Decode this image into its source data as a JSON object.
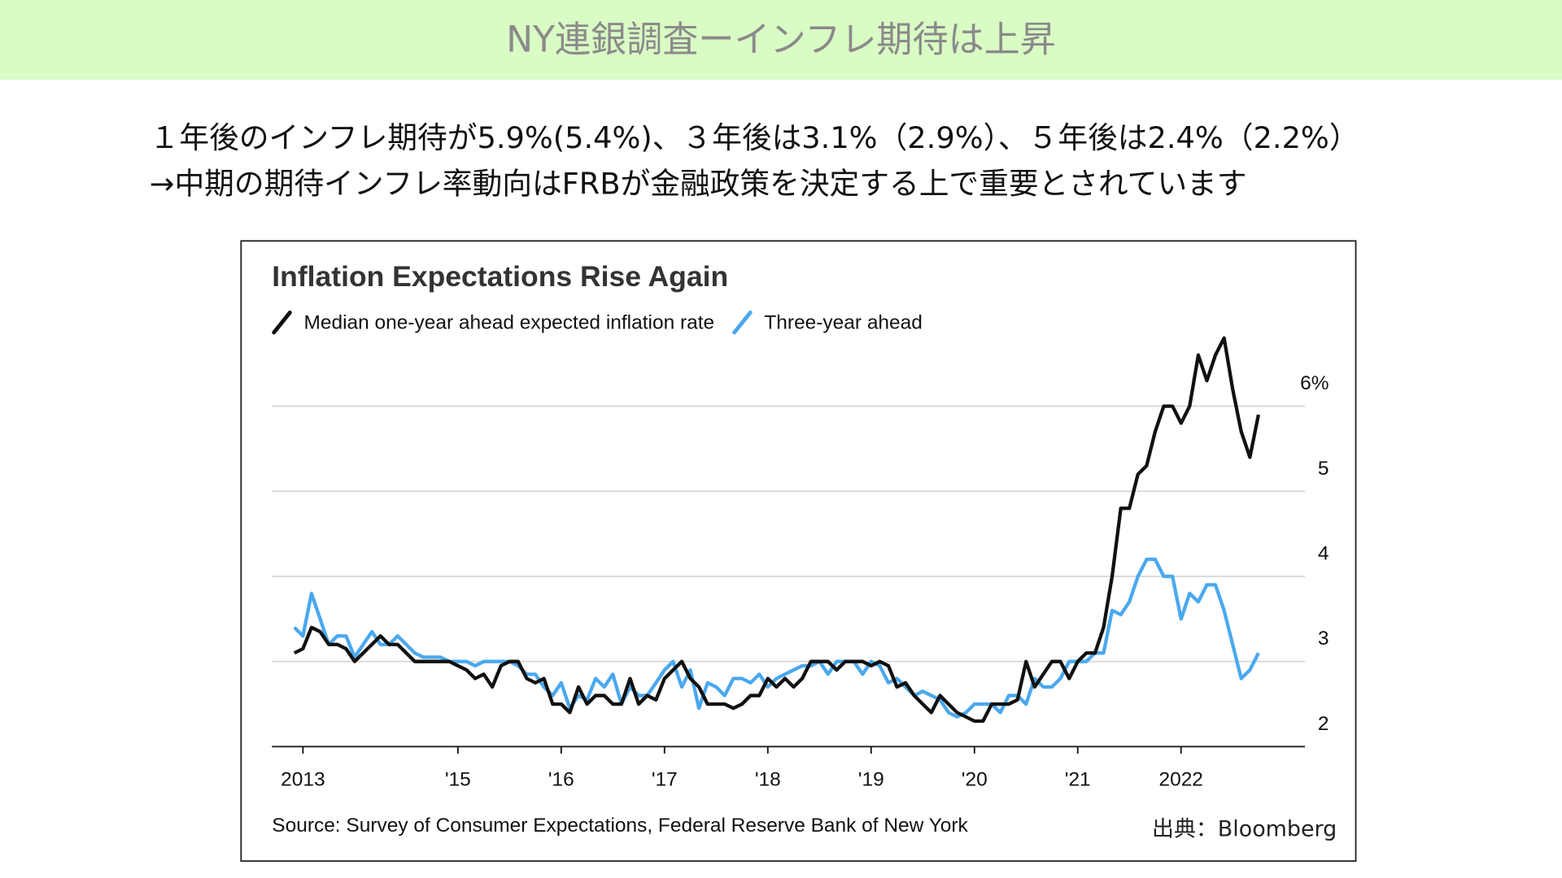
{
  "header": {
    "title": "NY連銀調査ーインフレ期待は上昇"
  },
  "notes": [
    "１年後のインフレ期待が5.9%(5.4%)、３年後は3.1%（2.9%）、５年後は2.4%（2.2%）",
    "→中期の期待インフレ率動向はFRBが金融政策を決定する上で重要とされています"
  ],
  "credit": "出典：Bloomberg",
  "chart_data": {
    "type": "line",
    "title": "Inflation Expectations Rise Again",
    "source": "Source: Survey of Consumer Expectations, Federal Reserve Bank of New York",
    "x": [
      2013.417,
      2013.5,
      2013.583,
      2013.667,
      2013.75,
      2013.833,
      2013.917,
      2014,
      2014.083,
      2014.167,
      2014.25,
      2014.333,
      2014.417,
      2014.5,
      2014.583,
      2014.667,
      2014.75,
      2014.833,
      2014.917,
      2015,
      2015.083,
      2015.167,
      2015.25,
      2015.333,
      2015.417,
      2015.5,
      2015.583,
      2015.667,
      2015.75,
      2015.833,
      2015.917,
      2016,
      2016.083,
      2016.167,
      2016.25,
      2016.333,
      2016.417,
      2016.5,
      2016.583,
      2016.667,
      2016.75,
      2016.833,
      2016.917,
      2017,
      2017.083,
      2017.167,
      2017.25,
      2017.333,
      2017.417,
      2017.5,
      2017.583,
      2017.667,
      2017.75,
      2017.833,
      2017.917,
      2018,
      2018.083,
      2018.167,
      2018.25,
      2018.333,
      2018.417,
      2018.5,
      2018.583,
      2018.667,
      2018.75,
      2018.833,
      2018.917,
      2019,
      2019.083,
      2019.167,
      2019.25,
      2019.333,
      2019.417,
      2019.5,
      2019.583,
      2019.667,
      2019.75,
      2019.833,
      2019.917,
      2020,
      2020.083,
      2020.167,
      2020.25,
      2020.333,
      2020.417,
      2020.5,
      2020.583,
      2020.667,
      2020.75,
      2020.833,
      2020.917,
      2021,
      2021.083,
      2021.167,
      2021.25,
      2021.333,
      2021.417,
      2021.5,
      2021.583,
      2021.667,
      2021.75,
      2021.833,
      2021.917,
      2022,
      2022.083,
      2022.167,
      2022.25,
      2022.333,
      2022.417,
      2022.5,
      2022.583,
      2022.667,
      2022.75
    ],
    "series": [
      {
        "name": "Median one-year ahead expected inflation rate",
        "color": "#111111",
        "values": [
          3.1,
          3.15,
          3.4,
          3.35,
          3.2,
          3.2,
          3.15,
          3.0,
          3.1,
          3.2,
          3.3,
          3.2,
          3.2,
          3.1,
          3.0,
          3.0,
          3.0,
          3.0,
          3.0,
          2.95,
          2.9,
          2.8,
          2.85,
          2.7,
          2.95,
          3.0,
          3.0,
          2.8,
          2.75,
          2.8,
          2.5,
          2.5,
          2.4,
          2.7,
          2.5,
          2.6,
          2.6,
          2.5,
          2.5,
          2.8,
          2.5,
          2.6,
          2.55,
          2.8,
          2.9,
          3.0,
          2.8,
          2.7,
          2.5,
          2.5,
          2.5,
          2.45,
          2.5,
          2.6,
          2.6,
          2.8,
          2.7,
          2.8,
          2.7,
          2.8,
          3.0,
          3.0,
          3.0,
          2.9,
          3.0,
          3.0,
          3.0,
          2.95,
          3.0,
          2.95,
          2.7,
          2.75,
          2.6,
          2.5,
          2.4,
          2.6,
          2.5,
          2.4,
          2.35,
          2.3,
          2.3,
          2.5,
          2.5,
          2.5,
          2.55,
          3.0,
          2.7,
          2.85,
          3.0,
          3.0,
          2.8,
          3.0,
          3.1,
          3.1,
          3.4,
          4.0,
          4.8,
          4.8,
          5.2,
          5.3,
          5.7,
          6.0,
          6.0,
          5.8,
          6.0,
          6.6,
          6.3,
          6.6,
          6.8,
          6.2,
          5.7,
          5.4,
          5.9
        ]
      },
      {
        "name": "Three-year ahead",
        "color": "#4aa8ee",
        "values": [
          3.4,
          3.3,
          3.8,
          3.5,
          3.2,
          3.3,
          3.3,
          3.05,
          3.2,
          3.35,
          3.2,
          3.2,
          3.3,
          3.2,
          3.1,
          3.05,
          3.05,
          3.05,
          3.0,
          3.0,
          3.0,
          2.95,
          3.0,
          3.0,
          3.0,
          3.0,
          2.95,
          2.85,
          2.85,
          2.7,
          2.6,
          2.75,
          2.45,
          2.6,
          2.55,
          2.8,
          2.7,
          2.85,
          2.5,
          2.7,
          2.6,
          2.6,
          2.75,
          2.9,
          3.0,
          2.7,
          2.9,
          2.45,
          2.75,
          2.7,
          2.6,
          2.8,
          2.8,
          2.75,
          2.85,
          2.7,
          2.8,
          2.85,
          2.9,
          2.95,
          2.95,
          3.0,
          2.85,
          3.0,
          3.0,
          3.0,
          2.85,
          3.0,
          2.95,
          2.75,
          2.8,
          2.7,
          2.6,
          2.65,
          2.6,
          2.55,
          2.4,
          2.35,
          2.4,
          2.5,
          2.5,
          2.5,
          2.4,
          2.6,
          2.6,
          2.5,
          2.8,
          2.7,
          2.7,
          2.8,
          3.0,
          3.0,
          3.0,
          3.1,
          3.1,
          3.6,
          3.55,
          3.7,
          4.0,
          4.2,
          4.2,
          4.0,
          4.0,
          3.5,
          3.8,
          3.7,
          3.9,
          3.9,
          3.6,
          3.2,
          2.8,
          2.9,
          3.1
        ]
      }
    ],
    "xlim": [
      2013.2,
      2023.2
    ],
    "xticks": [
      {
        "value": 2013.5,
        "label": "2013"
      },
      {
        "value": 2015,
        "label": "'15"
      },
      {
        "value": 2016,
        "label": "'16"
      },
      {
        "value": 2017,
        "label": "'17"
      },
      {
        "value": 2018,
        "label": "'18"
      },
      {
        "value": 2019,
        "label": "'19"
      },
      {
        "value": 2020,
        "label": "'20"
      },
      {
        "value": 2021,
        "label": "'21"
      },
      2022
    ],
    "ylim": [
      2,
      7
    ],
    "yticks": [
      2,
      3,
      4,
      5,
      {
        "value": 6,
        "label": "6%"
      }
    ],
    "grid": true
  }
}
